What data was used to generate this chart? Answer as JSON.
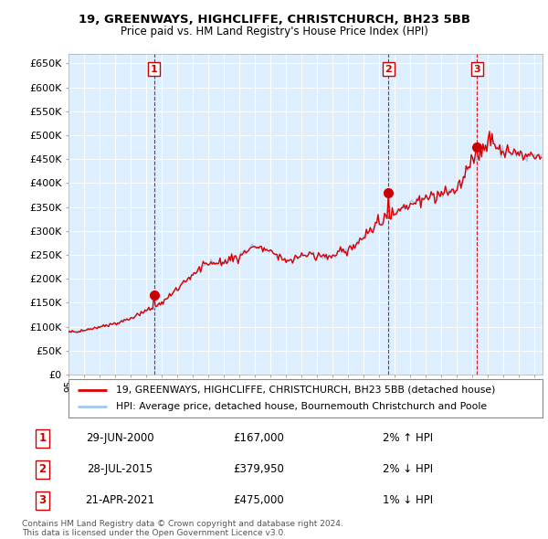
{
  "title_line1": "19, GREENWAYS, HIGHCLIFFE, CHRISTCHURCH, BH23 5BB",
  "title_line2": "Price paid vs. HM Land Registry's House Price Index (HPI)",
  "ylabel_ticks": [
    "£0",
    "£50K",
    "£100K",
    "£150K",
    "£200K",
    "£250K",
    "£300K",
    "£350K",
    "£400K",
    "£450K",
    "£500K",
    "£550K",
    "£600K",
    "£650K"
  ],
  "ytick_values": [
    0,
    50000,
    100000,
    150000,
    200000,
    250000,
    300000,
    350000,
    400000,
    450000,
    500000,
    550000,
    600000,
    650000
  ],
  "legend_line1": "19, GREENWAYS, HIGHCLIFFE, CHRISTCHURCH, BH23 5BB (detached house)",
  "legend_line2": "HPI: Average price, detached house, Bournemouth Christchurch and Poole",
  "transactions": [
    {
      "num": 1,
      "date": "29-JUN-2000",
      "price": 167000,
      "pct": "2%",
      "dir": "↑",
      "year": 2000.5
    },
    {
      "num": 2,
      "date": "28-JUL-2015",
      "price": 379950,
      "pct": "2%",
      "dir": "↓",
      "year": 2015.58
    },
    {
      "num": 3,
      "date": "21-APR-2021",
      "price": 475000,
      "pct": "1%",
      "dir": "↓",
      "year": 2021.29
    }
  ],
  "copyright": "Contains HM Land Registry data © Crown copyright and database right 2024.\nThis data is licensed under the Open Government Licence v3.0.",
  "hpi_color": "#a0c8f0",
  "price_color": "#dd0000",
  "marker_color": "#cc0000",
  "transaction_box_color": "#cc0000",
  "background_color": "#ffffff",
  "plot_bg_color": "#ddeeff",
  "grid_color": "#ffffff",
  "xlim_min": 1995.0,
  "xlim_max": 2025.5
}
